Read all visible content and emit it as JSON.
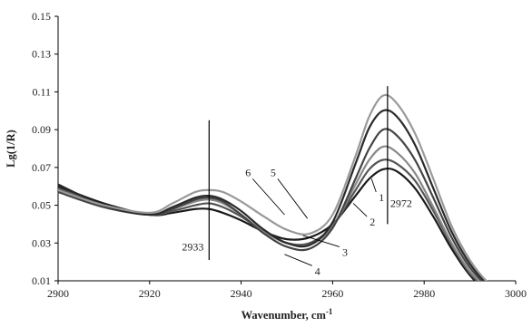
{
  "chart_data": {
    "type": "line",
    "title": "",
    "xlabel": "Wavenumber, cm",
    "xlabel_sup": "-1",
    "ylabel": "Lg(1/R)",
    "xlim": [
      2900,
      3000
    ],
    "ylim": [
      0.01,
      0.15
    ],
    "xticks": [
      2900,
      2920,
      2940,
      2960,
      2980,
      3000
    ],
    "yticks": [
      0.01,
      0.03,
      0.05,
      0.07,
      0.09,
      0.11,
      0.13,
      0.15
    ],
    "xtick_labels": [
      "2900",
      "2920",
      "2940",
      "2960",
      "2980",
      "3000"
    ],
    "ytick_labels": [
      "0.01",
      "0.03",
      "0.05",
      "0.07",
      "0.09",
      "0.11",
      "0.13",
      "0.15"
    ],
    "grid": false,
    "legend": "none",
    "x": [
      2900,
      2910,
      2920,
      2925,
      2930,
      2933,
      2936,
      2940,
      2945,
      2950,
      2955,
      2960,
      2965,
      2968,
      2971,
      2974,
      2978,
      2982,
      2986,
      2990,
      2994,
      2998
    ],
    "series": [
      {
        "name": "1",
        "color": "#1a1a1a",
        "values": [
          0.06,
          0.051,
          0.045,
          0.046,
          0.048,
          0.048,
          0.046,
          0.042,
          0.036,
          0.032,
          0.033,
          0.04,
          0.055,
          0.064,
          0.069,
          0.068,
          0.059,
          0.044,
          0.027,
          0.013,
          0.004,
          0.0
        ]
      },
      {
        "name": "2",
        "color": "#555555",
        "values": [
          0.059,
          0.05,
          0.045,
          0.047,
          0.05,
          0.051,
          0.049,
          0.044,
          0.036,
          0.03,
          0.03,
          0.039,
          0.058,
          0.069,
          0.074,
          0.072,
          0.063,
          0.047,
          0.029,
          0.014,
          0.005,
          0.0
        ]
      },
      {
        "name": "3",
        "color": "#888888",
        "values": [
          0.058,
          0.049,
          0.045,
          0.048,
          0.052,
          0.053,
          0.051,
          0.045,
          0.036,
          0.03,
          0.029,
          0.039,
          0.061,
          0.074,
          0.081,
          0.078,
          0.067,
          0.049,
          0.03,
          0.015,
          0.006,
          0.0
        ]
      },
      {
        "name": "4",
        "color": "#444444",
        "values": [
          0.057,
          0.049,
          0.045,
          0.048,
          0.053,
          0.054,
          0.052,
          0.045,
          0.035,
          0.028,
          0.027,
          0.038,
          0.064,
          0.08,
          0.09,
          0.087,
          0.074,
          0.054,
          0.033,
          0.017,
          0.007,
          0.001
        ]
      },
      {
        "name": "5",
        "color": "#2a2a2a",
        "values": [
          0.061,
          0.05,
          0.045,
          0.049,
          0.054,
          0.055,
          0.053,
          0.047,
          0.037,
          0.03,
          0.029,
          0.041,
          0.072,
          0.091,
          0.1,
          0.097,
          0.082,
          0.059,
          0.036,
          0.019,
          0.008,
          0.002
        ]
      },
      {
        "name": "6",
        "color": "#999999",
        "values": [
          0.058,
          0.05,
          0.046,
          0.051,
          0.057,
          0.058,
          0.057,
          0.052,
          0.044,
          0.037,
          0.035,
          0.045,
          0.076,
          0.097,
          0.108,
          0.104,
          0.088,
          0.064,
          0.039,
          0.021,
          0.009,
          0.003
        ]
      }
    ],
    "markers": [
      {
        "label": "2933",
        "x": 2933,
        "y_from": 0.021,
        "y_to": 0.095
      },
      {
        "label": "2972",
        "x": 2972,
        "y_from": 0.04,
        "y_to": 0.113
      }
    ],
    "curve_labels": [
      {
        "text": "1",
        "x": 2969.5,
        "y": 0.057,
        "to_x": 2968.5,
        "to_y": 0.064
      },
      {
        "text": "2",
        "x": 2967.5,
        "y": 0.044,
        "to_x": 2964.5,
        "to_y": 0.051
      },
      {
        "text": "3",
        "x": 2961.5,
        "y": 0.028,
        "to_x": 2953.5,
        "to_y": 0.034
      },
      {
        "text": "4",
        "x": 2955.5,
        "y": 0.018,
        "to_x": 2949.5,
        "to_y": 0.024
      },
      {
        "text": "5",
        "x": 2948.0,
        "y": 0.064,
        "to_x": 2954.5,
        "to_y": 0.043
      },
      {
        "text": "6",
        "x": 2942.5,
        "y": 0.064,
        "to_x": 2949.5,
        "to_y": 0.045
      }
    ]
  }
}
